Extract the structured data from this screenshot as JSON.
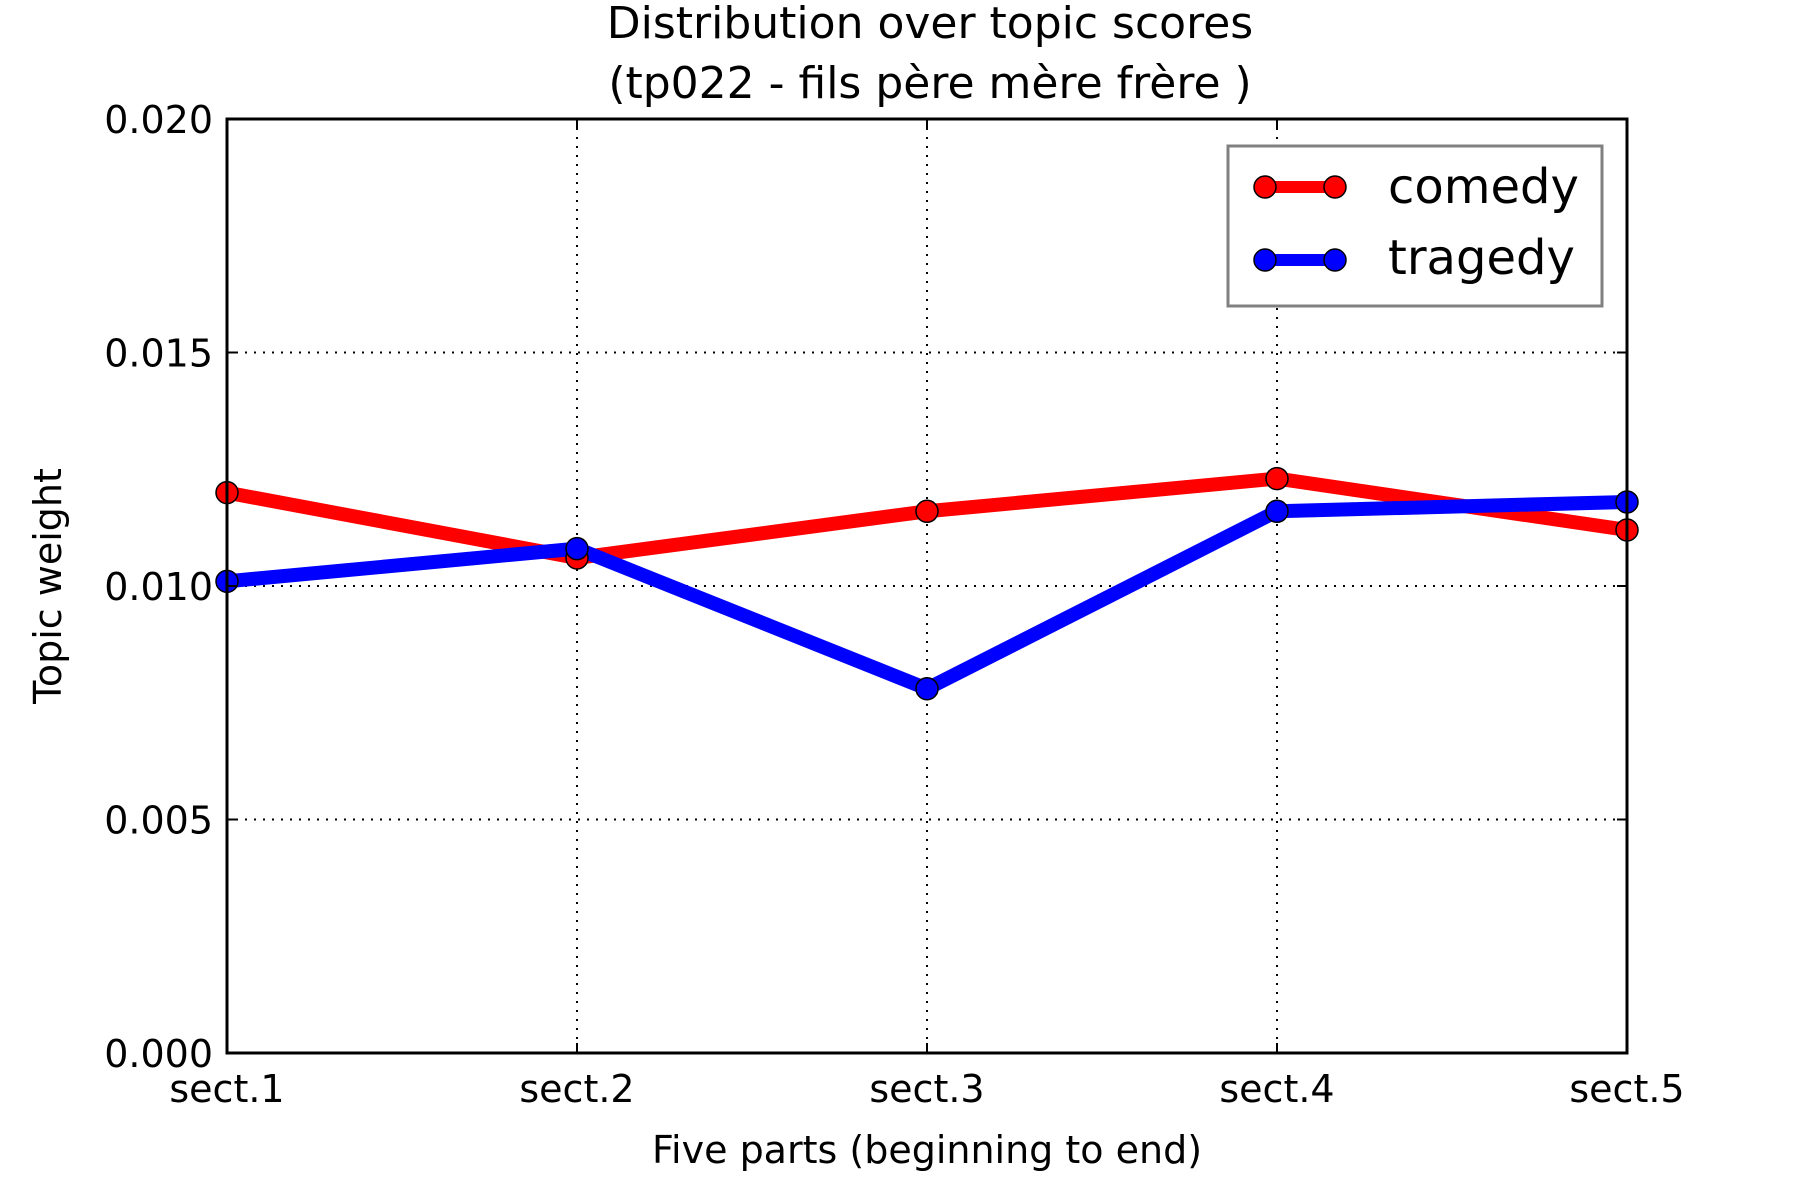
{
  "chart_data": {
    "type": "line",
    "title": "Distribution over topic scores",
    "subtitle": "(tp022 - fils père mère frère )",
    "xlabel": "Five parts (beginning to end)",
    "ylabel": "Topic weight",
    "categories": [
      "sect.1",
      "sect.2",
      "sect.3",
      "sect.4",
      "sect.5"
    ],
    "ylim": [
      0,
      0.02
    ],
    "yticks": [
      "0.000",
      "0.005",
      "0.010",
      "0.015",
      "0.020"
    ],
    "grid": true,
    "legend_position": "top-right",
    "series": [
      {
        "name": "comedy",
        "color": "#ff0000",
        "values": [
          0.012,
          0.0106,
          0.0116,
          0.0123,
          0.0112
        ]
      },
      {
        "name": "tragedy",
        "color": "#0000ff",
        "values": [
          0.0101,
          0.0108,
          0.0078,
          0.0116,
          0.0118
        ]
      }
    ]
  }
}
